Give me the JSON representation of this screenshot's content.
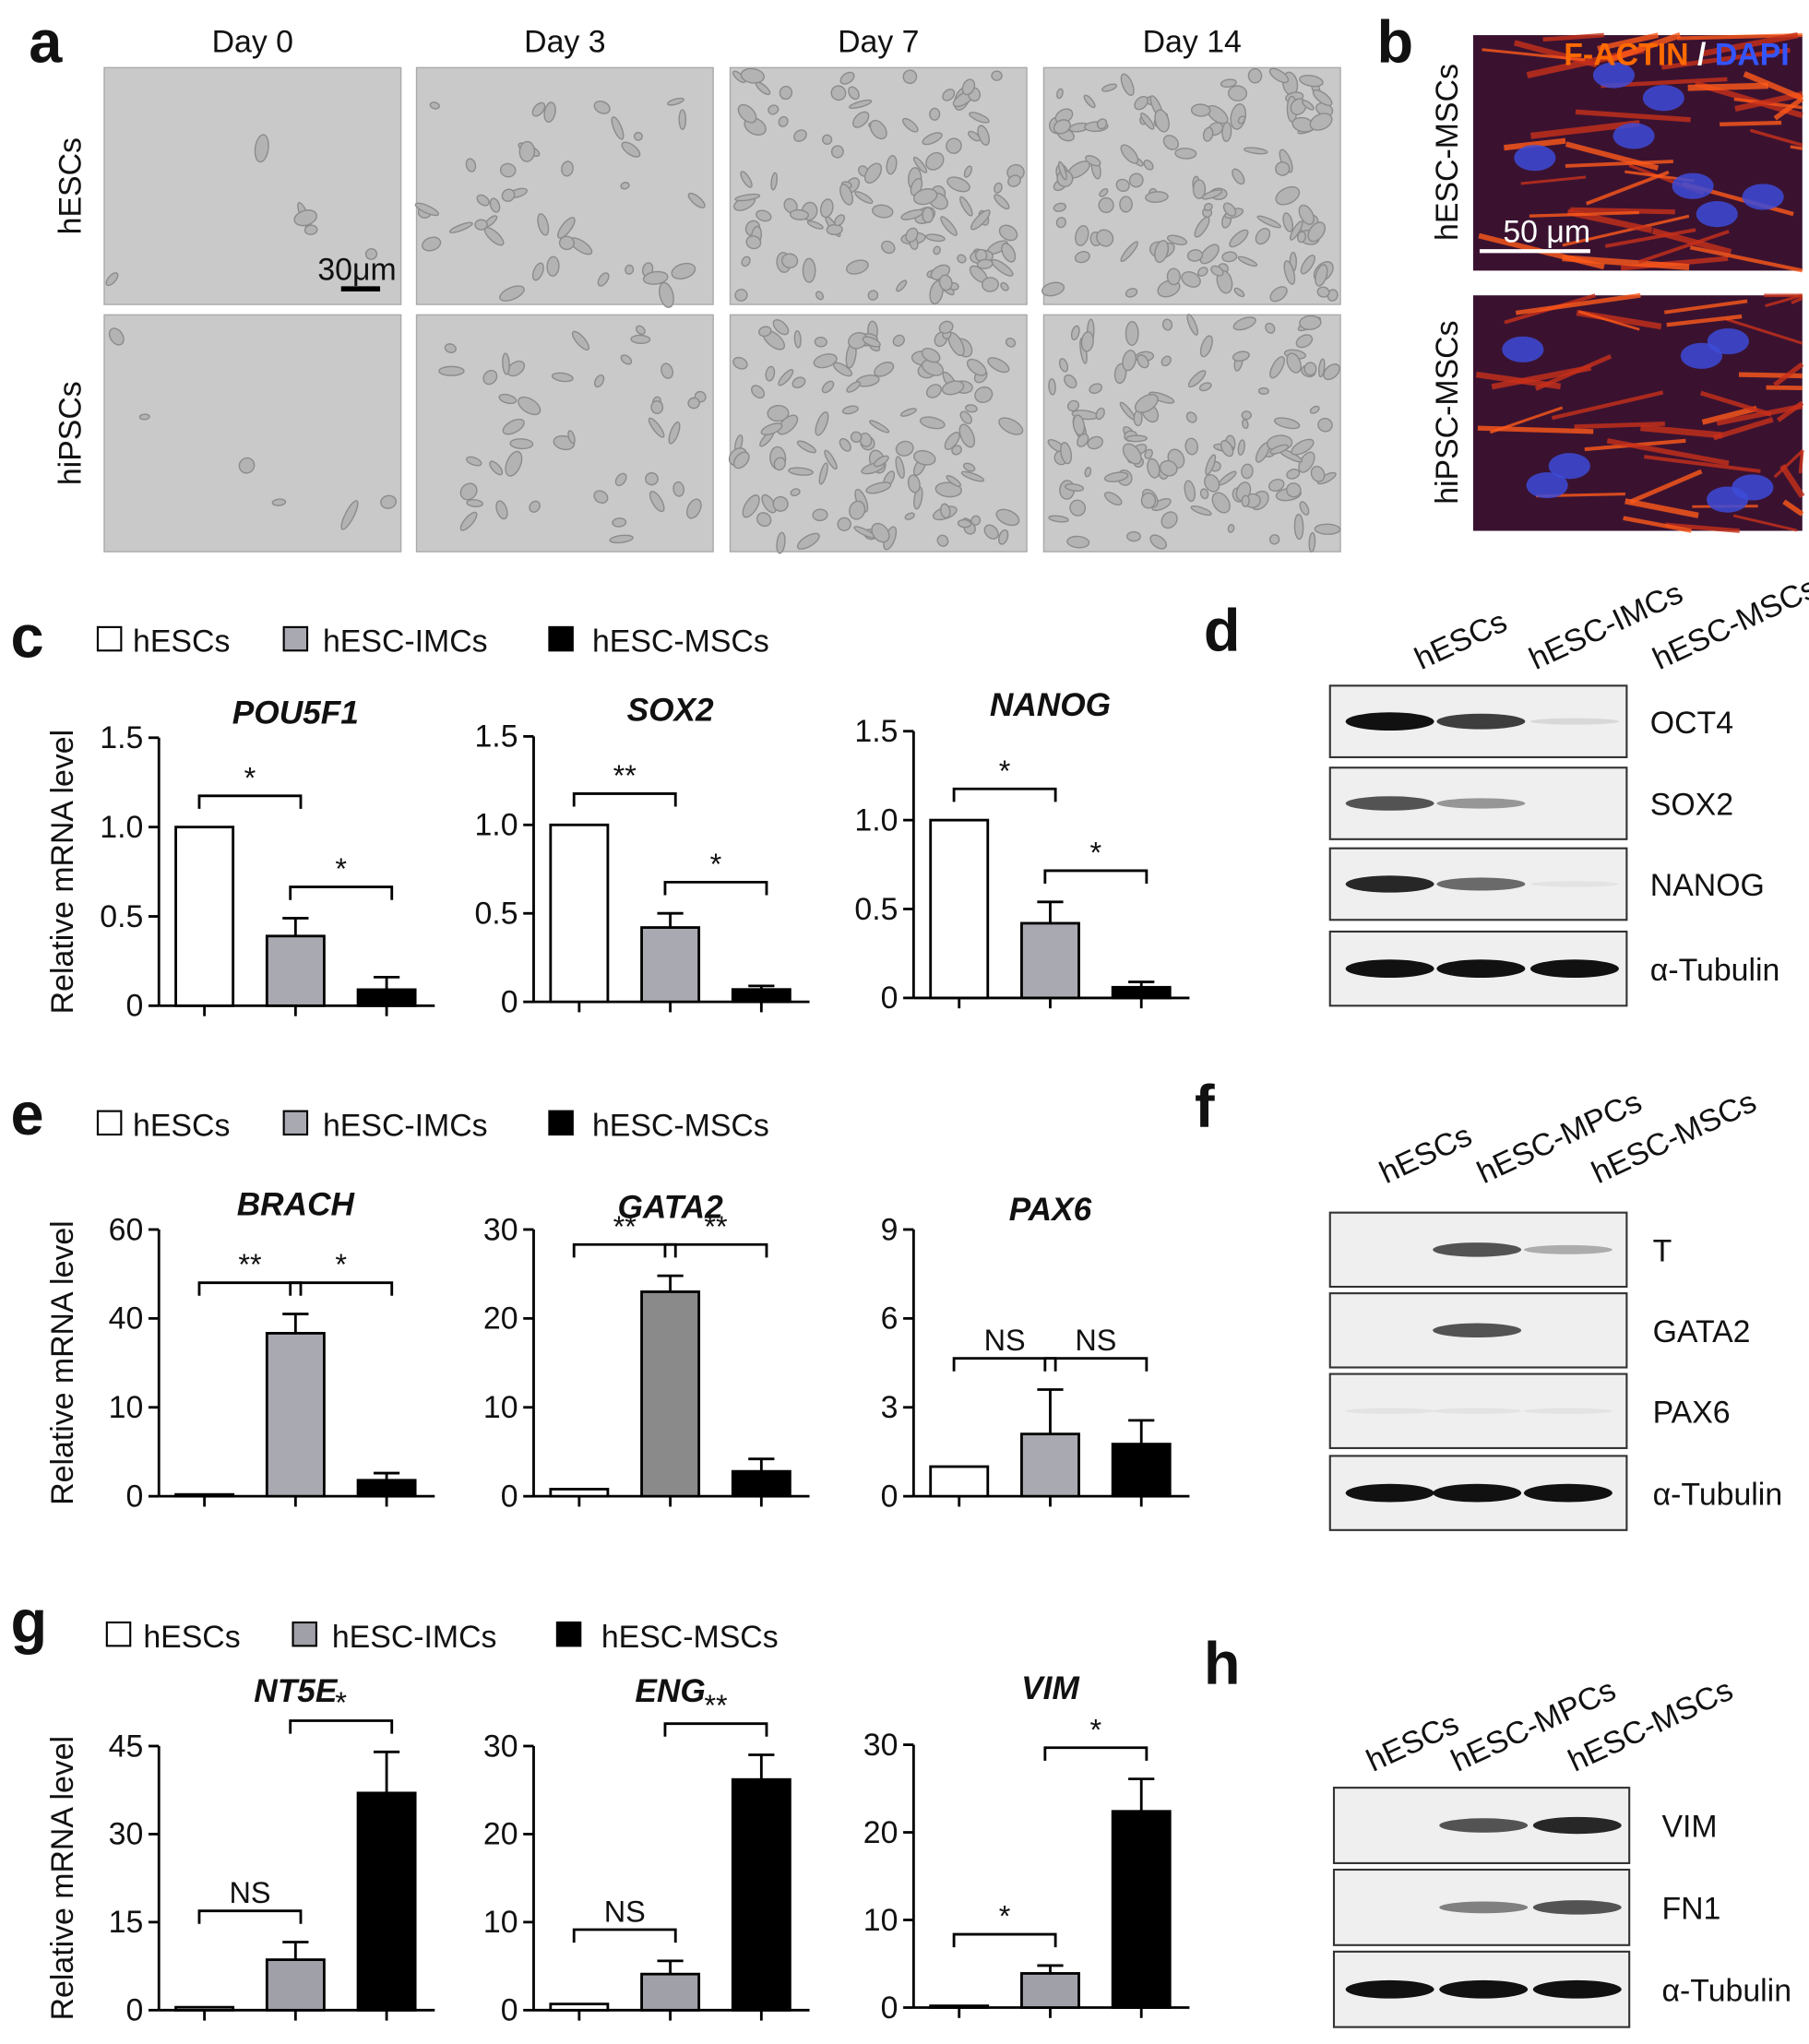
{
  "panel_labels": [
    "a",
    "b",
    "c",
    "d",
    "e",
    "f",
    "g",
    "h"
  ],
  "micrographs": {
    "columns": [
      "Day 0",
      "Day 3",
      "Day 7",
      "Day 14"
    ],
    "rows": [
      "hESCs",
      "hiPSCs"
    ],
    "scale_bar": "30μm"
  },
  "fluorescence": {
    "rows": [
      "hESC-MSCs",
      "hiPSC-MSCs"
    ],
    "stain": [
      "F-ACTIN",
      " / ",
      "DAPI"
    ],
    "scale_bar": "50 μm"
  },
  "blots": [
    {
      "lanes": [
        "hESCs",
        "hESC-IMCs",
        "hESC-MSCs"
      ],
      "rows": [
        "OCT4",
        "SOX2",
        "NANOG",
        "α-Tubulin"
      ]
    },
    {
      "lanes": [
        "hESCs",
        "hESC-MPCs",
        "hESC-MSCs"
      ],
      "rows": [
        "T",
        "GATA2",
        "PAX6",
        "α-Tubulin"
      ]
    },
    {
      "lanes": [
        "hESCs",
        "hESC-MPCs",
        "hESC-MSCs"
      ],
      "rows": [
        "VIM",
        "FN1",
        "α-Tubulin"
      ]
    }
  ],
  "chart_data": [
    {
      "type": "bar",
      "title": "POU5F1",
      "ylabel": "Relative mRNA level",
      "legend": [
        "hESCs",
        "hESC-IMCs",
        "hESC-MSCs"
      ],
      "colors": [
        "#ffffff",
        "#a9a9b1",
        "#000000"
      ],
      "values": [
        1,
        0.39,
        0.09
      ],
      "errors": [
        0,
        0.1,
        0.07
      ],
      "ylim": [
        0,
        1.5
      ],
      "yticks": [
        0,
        0.5,
        {
          "value": 1,
          "label": "1.0"
        },
        1.5
      ],
      "annotations": [
        "*",
        "*"
      ]
    },
    {
      "type": "bar",
      "title": "SOX2",
      "colors": [
        "#ffffff",
        "#a9a9b1",
        "#000000"
      ],
      "values": [
        1,
        0.42,
        0.07
      ],
      "errors": [
        0,
        0.08,
        0.02
      ],
      "ylim": [
        0,
        1.5
      ],
      "yticks": [
        0,
        0.5,
        {
          "value": 1,
          "label": "1.0"
        },
        1.5
      ],
      "annotations": [
        "**",
        "*"
      ]
    },
    {
      "type": "bar",
      "title": "NANOG",
      "colors": [
        "#ffffff",
        "#a9a9b1",
        "#000000"
      ],
      "values": [
        1,
        0.42,
        0.06
      ],
      "errors": [
        0,
        0.12,
        0.03
      ],
      "ylim": [
        0,
        1.5
      ],
      "yticks": [
        0,
        0.5,
        {
          "value": 1,
          "label": "1.0"
        },
        1.5
      ],
      "annotations": [
        "*",
        "*"
      ]
    },
    {
      "type": "bar",
      "title": "BRACH",
      "ylabel": "Relative mRNA level",
      "legend": [
        "hESCs",
        "hESC-IMCs",
        "hESC-MSCs"
      ],
      "colors": [
        "#ffffff",
        "#a9a9b1",
        "#000000"
      ],
      "values": [
        0.2,
        35,
        1.8
      ],
      "errors": [
        0,
        6,
        0.8
      ],
      "ylim": [
        0,
        60
      ],
      "yticks": [
        0,
        10,
        40,
        60
      ],
      "annotations": [
        "**",
        "*"
      ]
    },
    {
      "type": "bar",
      "title": "GATA2",
      "colors": [
        "#ffffff",
        "#8a8a8a",
        "#000000"
      ],
      "values": [
        0.8,
        23,
        2.8
      ],
      "errors": [
        0,
        1.8,
        1.4
      ],
      "ylim": [
        0,
        30
      ],
      "yticks": [
        0,
        10,
        20,
        30
      ],
      "annotations": [
        "**",
        "**"
      ]
    },
    {
      "type": "bar",
      "title": "PAX6",
      "colors": [
        "#ffffff",
        "#a9a9b1",
        "#000000"
      ],
      "values": [
        1,
        2.1,
        1.76
      ],
      "errors": [
        0,
        1.5,
        0.8
      ],
      "ylim": [
        0,
        9
      ],
      "yticks": [
        0,
        3,
        6,
        9
      ],
      "annotations": [
        "NS",
        "NS"
      ]
    },
    {
      "type": "bar",
      "title": "NT5E",
      "ylabel": "Relative mRNA level",
      "legend": [
        "hESCs",
        "hESC-IMCs",
        "hESC-MSCs"
      ],
      "colors": [
        "#ffffff",
        "#a0a0a8",
        "#000000"
      ],
      "values": [
        0.5,
        8.6,
        37
      ],
      "errors": [
        0,
        3,
        7
      ],
      "ylim": [
        0,
        45
      ],
      "yticks": [
        0,
        15,
        30,
        45
      ],
      "annotations": [
        "NS",
        "*"
      ]
    },
    {
      "type": "bar",
      "title": "ENG",
      "colors": [
        "#ffffff",
        "#a0a0a8",
        "#000000"
      ],
      "values": [
        0.7,
        4.1,
        26.2
      ],
      "errors": [
        0,
        1.5,
        2.8
      ],
      "ylim": [
        0,
        30
      ],
      "yticks": [
        0,
        10,
        20,
        30
      ],
      "annotations": [
        "NS",
        "**"
      ]
    },
    {
      "type": "bar",
      "title": "VIM",
      "colors": [
        "#ffffff",
        "#a0a0a8",
        "#000000"
      ],
      "values": [
        0.2,
        3.9,
        22.4
      ],
      "errors": [
        0,
        0.9,
        3.7
      ],
      "ylim": [
        0,
        30
      ],
      "yticks": [
        0,
        10,
        20,
        30
      ],
      "annotations": [
        "*",
        "*"
      ]
    }
  ]
}
